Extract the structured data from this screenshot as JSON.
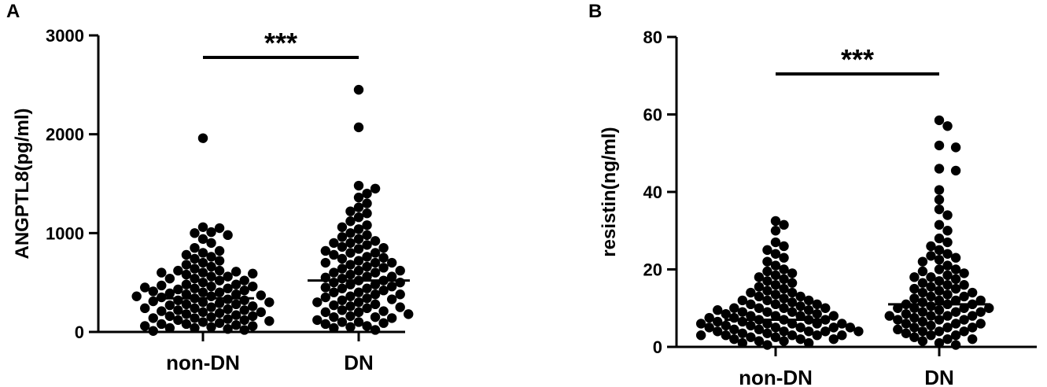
{
  "chart_data": [
    {
      "type": "scatter",
      "panel": "A",
      "ylabel": "ANGPTL8(pg/ml)",
      "ylim": [
        0,
        3000
      ],
      "yticks": [
        0,
        1000,
        2000,
        3000
      ],
      "categories": [
        "non-DN",
        "DN"
      ],
      "significance": "***",
      "means": [
        340,
        520
      ],
      "series": [
        {
          "values": [
            1960,
            1060,
            1050,
            1010,
            1000,
            980,
            940,
            900,
            850,
            820,
            800,
            780,
            760,
            740,
            720,
            700,
            680,
            660,
            640,
            620,
            610,
            600,
            590,
            580,
            560,
            540,
            520,
            500,
            480,
            470,
            460,
            450,
            440,
            430,
            420,
            410,
            400,
            390,
            380,
            370,
            360,
            350,
            340,
            330,
            320,
            310,
            300,
            290,
            280,
            270,
            260,
            250,
            240,
            230,
            220,
            210,
            200,
            190,
            180,
            170,
            160,
            150,
            140,
            130,
            120,
            110,
            100,
            90,
            80,
            70,
            60,
            50,
            40,
            30,
            20,
            10,
            600,
            560,
            520,
            480,
            440,
            400,
            360,
            320,
            280,
            240,
            200,
            160,
            120,
            80,
            40,
            620,
            540,
            460,
            380,
            300,
            220,
            140,
            60
          ]
        },
        {
          "values": [
            2450,
            2070,
            1480,
            1450,
            1400,
            1360,
            1300,
            1260,
            1220,
            1200,
            1160,
            1120,
            1080,
            1060,
            1040,
            1000,
            980,
            960,
            940,
            920,
            900,
            880,
            860,
            840,
            820,
            800,
            780,
            760,
            740,
            720,
            700,
            680,
            660,
            640,
            620,
            600,
            580,
            560,
            540,
            520,
            500,
            480,
            460,
            440,
            420,
            400,
            380,
            360,
            340,
            320,
            300,
            280,
            260,
            240,
            220,
            200,
            180,
            160,
            140,
            120,
            100,
            80,
            60,
            40,
            20,
            900,
            850,
            800,
            750,
            700,
            650,
            600,
            550,
            500,
            450,
            400,
            350,
            300,
            250,
            200,
            150,
            100,
            700,
            620,
            560,
            520,
            480,
            440,
            380,
            330,
            270,
            210,
            150,
            90,
            50
          ]
        }
      ]
    },
    {
      "type": "scatter",
      "panel": "B",
      "ylabel": "resistin(ng/ml)",
      "ylim": [
        0,
        80
      ],
      "yticks": [
        0,
        20,
        40,
        60,
        80
      ],
      "categories": [
        "non-DN",
        "DN"
      ],
      "significance": "***",
      "means": [
        7,
        11
      ],
      "series": [
        {
          "values": [
            32.5,
            31.5,
            30,
            27,
            26,
            25,
            24,
            23,
            22,
            21,
            20,
            19.5,
            19,
            18.5,
            18,
            17.5,
            17,
            16.5,
            16,
            15.5,
            15,
            14.5,
            14,
            13.5,
            13,
            12.5,
            12,
            11.5,
            11,
            10.5,
            10,
            9.5,
            9,
            8.5,
            8,
            7.5,
            7,
            6.5,
            6,
            5.5,
            5,
            4.5,
            4,
            3.5,
            3,
            2.5,
            2,
            1.5,
            1,
            0.5,
            10,
            9,
            8,
            7,
            6,
            5,
            4,
            3,
            2,
            1,
            9.5,
            8.5,
            7.5,
            6.5,
            5.5,
            4.5,
            3.5,
            2.5,
            1.5,
            8,
            7,
            6,
            5,
            4,
            3,
            2,
            12,
            11,
            10,
            9,
            8,
            7,
            6,
            5,
            4,
            3,
            6,
            5,
            4,
            3,
            14,
            13,
            12,
            11,
            10
          ]
        },
        {
          "values": [
            58.5,
            57,
            52,
            51.5,
            46,
            45.5,
            40.5,
            38,
            35.5,
            34,
            31.5,
            30,
            28,
            27,
            26,
            25,
            24,
            23.5,
            23,
            22.5,
            22,
            21,
            20,
            19.5,
            19,
            18.5,
            18,
            17.5,
            17,
            16.5,
            16,
            15.5,
            15,
            14.5,
            14,
            13.5,
            13,
            12.5,
            12,
            11.5,
            11,
            10.5,
            10,
            9.5,
            9,
            8.5,
            8,
            7.5,
            7,
            6.5,
            6,
            5.5,
            5,
            4.5,
            4,
            3.5,
            3,
            2.5,
            2,
            1.5,
            1,
            0.5,
            20,
            18,
            16,
            14,
            12,
            10,
            8,
            6,
            4,
            2,
            15,
            13,
            11,
            9,
            7,
            5,
            3,
            12,
            10,
            8,
            6,
            4,
            11,
            9,
            7,
            5,
            10,
            8
          ]
        }
      ]
    }
  ]
}
